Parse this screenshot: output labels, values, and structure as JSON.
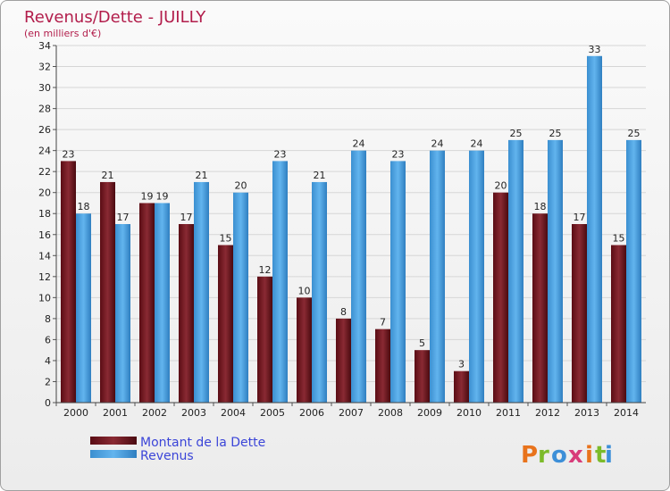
{
  "chart_data": {
    "type": "bar",
    "title": "Revenus/Dette - JUILLY",
    "subtitle": "(en milliers d'€)",
    "categories": [
      "2000",
      "2001",
      "2002",
      "2003",
      "2004",
      "2005",
      "2006",
      "2007",
      "2008",
      "2009",
      "2010",
      "2011",
      "2012",
      "2013",
      "2014"
    ],
    "series": [
      {
        "name": "Montant de la Dette",
        "values": [
          23,
          21,
          19,
          17,
          15,
          12,
          10,
          8,
          7,
          5,
          3,
          20,
          18,
          17,
          15
        ],
        "color": "#7a1a22"
      },
      {
        "name": "Revenus",
        "values": [
          18,
          17,
          19,
          21,
          20,
          23,
          21,
          24,
          23,
          24,
          24,
          25,
          25,
          33,
          25
        ],
        "color": "#4ea6e6"
      }
    ],
    "y_ticks": [
      "0",
      "2",
      "4",
      "6",
      "8",
      "10",
      "12",
      "14",
      "16",
      "18",
      "20",
      "22",
      "24",
      "26",
      "28",
      "30",
      "32",
      "34"
    ],
    "ylim": [
      0,
      34
    ],
    "grid": true,
    "legend": "bottom-left"
  },
  "brand": {
    "letters": [
      "P",
      "r",
      "o",
      "x",
      "i",
      "t",
      "i"
    ],
    "colors": [
      "#e8731c",
      "#7cbb2a",
      "#3d8fd8",
      "#d83c7a",
      "#e8731c",
      "#7cbb2a",
      "#3d8fd8"
    ]
  }
}
